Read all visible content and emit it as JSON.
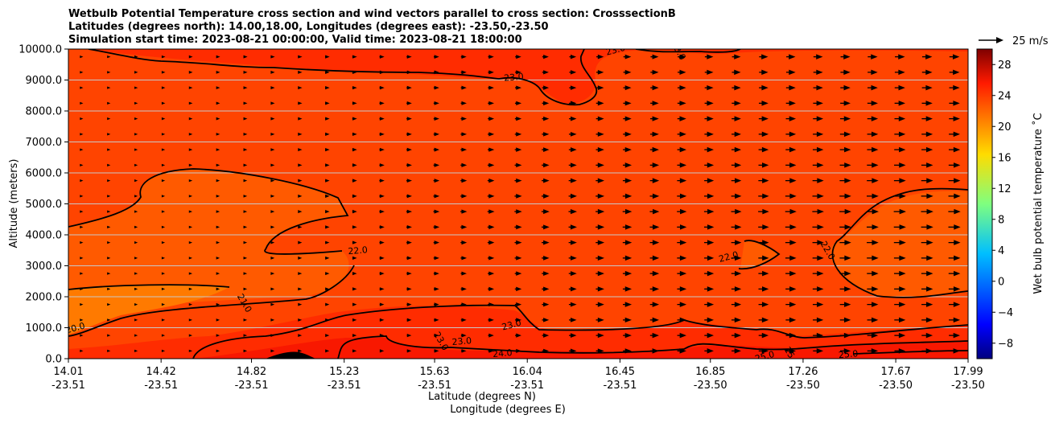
{
  "chart_data": {
    "type": "heatmap",
    "title_lines": [
      "Wetbulb Potential Temperature cross section and wind vectors parallel to cross section: CrosssectionB",
      "Latitudes (degrees north): 14.00,18.00, Longitudes (degrees east): -23.50,-23.50",
      "Simulation start time: 2023-08-21 00:00:00, Valid time: 2023-08-21 18:00:00"
    ],
    "xlabel_1": "Latitude (degrees N)",
    "xlabel_2": "Longitude (degrees E)",
    "ylabel": "Altitude (meters)",
    "xlim": [
      14.01,
      17.99
    ],
    "ylim": [
      0,
      10000
    ],
    "x_ticks": [
      {
        "lat": "14.01",
        "lon": "-23.51",
        "value": 14.01
      },
      {
        "lat": "14.42",
        "lon": "-23.51",
        "value": 14.42
      },
      {
        "lat": "14.82",
        "lon": "-23.51",
        "value": 14.82
      },
      {
        "lat": "15.23",
        "lon": "-23.51",
        "value": 15.23
      },
      {
        "lat": "15.63",
        "lon": "-23.51",
        "value": 15.63
      },
      {
        "lat": "16.04",
        "lon": "-23.51",
        "value": 16.04
      },
      {
        "lat": "16.45",
        "lon": "-23.51",
        "value": 16.45
      },
      {
        "lat": "16.85",
        "lon": "-23.50",
        "value": 16.85
      },
      {
        "lat": "17.26",
        "lon": "-23.50",
        "value": 17.26
      },
      {
        "lat": "17.67",
        "lon": "-23.50",
        "value": 17.67
      },
      {
        "lat": "17.99",
        "lon": "-23.50",
        "value": 17.99
      }
    ],
    "y_ticks": [
      {
        "label": "0.0",
        "value": 0
      },
      {
        "label": "1000.0",
        "value": 1000
      },
      {
        "label": "2000.0",
        "value": 2000
      },
      {
        "label": "3000.0",
        "value": 3000
      },
      {
        "label": "4000.0",
        "value": 4000
      },
      {
        "label": "5000.0",
        "value": 5000
      },
      {
        "label": "6000.0",
        "value": 6000
      },
      {
        "label": "7000.0",
        "value": 7000
      },
      {
        "label": "8000.0",
        "value": 8000
      },
      {
        "label": "9000.0",
        "value": 9000
      },
      {
        "label": "10000.0",
        "value": 10000
      }
    ],
    "grid": "horizontal",
    "colorbar": {
      "label": "Wet bulb potential temperature $^\\circ$C",
      "label_display": "Wet bulb potential temperature ˚C",
      "range": [
        -10,
        30
      ],
      "ticks": [
        {
          "label": "−8",
          "value": -8
        },
        {
          "label": "−4",
          "value": -4
        },
        {
          "label": "0",
          "value": 0
        },
        {
          "label": "4",
          "value": 4
        },
        {
          "label": "8",
          "value": 8
        },
        {
          "label": "12",
          "value": 12
        },
        {
          "label": "16",
          "value": 16
        },
        {
          "label": "20",
          "value": 20
        },
        {
          "label": "24",
          "value": 24
        },
        {
          "label": "28",
          "value": 28
        }
      ],
      "colormap": "jet"
    },
    "quiver_key": {
      "label": "25 m/s",
      "value_ms": 25
    },
    "field_fill_colors": {
      "background": "#ff4400",
      "cooler": "#ff5a00",
      "coolest": "#ff7a00",
      "warmer": "#ff2c00",
      "warmest": "#f81800",
      "terrain": "#000000"
    },
    "contours": [
      {
        "label": "20.0",
        "level": 20.0,
        "label_x": 14.04,
        "label_y": 1000
      },
      {
        "label": "21.0",
        "level": 21.0,
        "label_x": 14.79,
        "label_y": 1800
      },
      {
        "label": "22.0",
        "level": 22.0,
        "label_x": 15.29,
        "label_y": 3500
      },
      {
        "label": "22.0",
        "level": 22.0,
        "label_x": 16.93,
        "label_y": 3300
      },
      {
        "label": "22.0",
        "level": 22.0,
        "label_x": 17.37,
        "label_y": 3500
      },
      {
        "label": "23.0",
        "level": 23.0,
        "label_x": 15.98,
        "label_y": 9100
      },
      {
        "label": "23.0",
        "level": 23.0,
        "label_x": 15.97,
        "label_y": 1100
      },
      {
        "label": "23.0",
        "level": 23.0,
        "label_x": 15.66,
        "label_y": 570
      },
      {
        "label": "23.0",
        "level": 23.0,
        "label_x": 15.75,
        "label_y": 570
      },
      {
        "label": "23.0",
        "level": 23.0,
        "label_x": 16.43,
        "label_y": 9980
      },
      {
        "label": "23.0",
        "level": 23.0,
        "label_x": 16.71,
        "label_y": 9950
      },
      {
        "label": "24.0",
        "level": 24.0,
        "label_x": 15.93,
        "label_y": 180
      },
      {
        "label": "25.0",
        "level": 25.0,
        "label_x": 17.09,
        "label_y": 80
      },
      {
        "label": "25.0",
        "level": 25.0,
        "label_x": 17.21,
        "label_y": 80
      },
      {
        "label": "25.0",
        "level": 25.0,
        "label_x": 17.46,
        "label_y": 150
      }
    ],
    "wind_vectors_ms_by_altitude": {
      "heights_m": [
        0,
        500,
        1000,
        1500,
        2000,
        2500,
        3000,
        3500,
        4000,
        4500,
        5000,
        5500,
        6000,
        6500,
        7000,
        7500,
        8000,
        8500,
        9000,
        9500,
        10000
      ],
      "lat_breaks": [
        14.01,
        14.42,
        14.82,
        15.23,
        15.63,
        16.04,
        16.45,
        16.85,
        17.26,
        17.67,
        17.99
      ],
      "note": "u-component parallel to cross section, m/s, increasing eastward/north and with height",
      "u_low": [
        3,
        3,
        4,
        5,
        6,
        8,
        11,
        12,
        13,
        14,
        14
      ],
      "u_mid": [
        2,
        3,
        4,
        6,
        8,
        10,
        12,
        13,
        15,
        16,
        16
      ],
      "u_high": [
        3,
        4,
        5,
        6,
        7,
        8,
        10,
        11,
        12,
        13,
        13
      ]
    }
  }
}
